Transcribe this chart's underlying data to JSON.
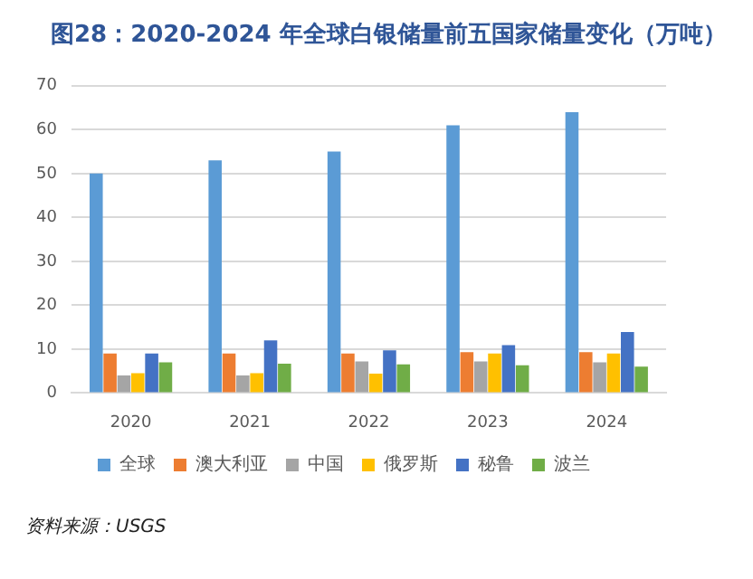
{
  "chart_data": {
    "type": "bar",
    "title": "图28：2020-2024 年全球白银储量前五国家储量变化（万吨）",
    "categories": [
      "2020",
      "2021",
      "2022",
      "2023",
      "2024"
    ],
    "series": [
      {
        "name": "全球",
        "color": "#5b9bd5",
        "values": [
          50,
          53,
          55,
          61,
          64
        ]
      },
      {
        "name": "澳大利亚",
        "color": "#ed7d31",
        "values": [
          9,
          9,
          9,
          9.3,
          9.3
        ]
      },
      {
        "name": "中国",
        "color": "#a5a5a5",
        "values": [
          4,
          4,
          7.2,
          7.2,
          7
        ]
      },
      {
        "name": "俄罗斯",
        "color": "#ffc000",
        "values": [
          4.5,
          4.5,
          4.4,
          9,
          9
        ]
      },
      {
        "name": "秘鲁",
        "color": "#4472c4",
        "values": [
          9,
          12,
          9.7,
          10.9,
          13.9
        ]
      },
      {
        "name": "波兰",
        "color": "#70ad47",
        "values": [
          7,
          6.7,
          6.5,
          6.3,
          6
        ]
      }
    ],
    "ylim": [
      0,
      70
    ],
    "yticks": [
      0,
      10,
      20,
      30,
      40,
      50,
      60,
      70
    ],
    "grid": "y",
    "legend": "bottom",
    "annotations": [
      "资料来源：USGS"
    ]
  }
}
